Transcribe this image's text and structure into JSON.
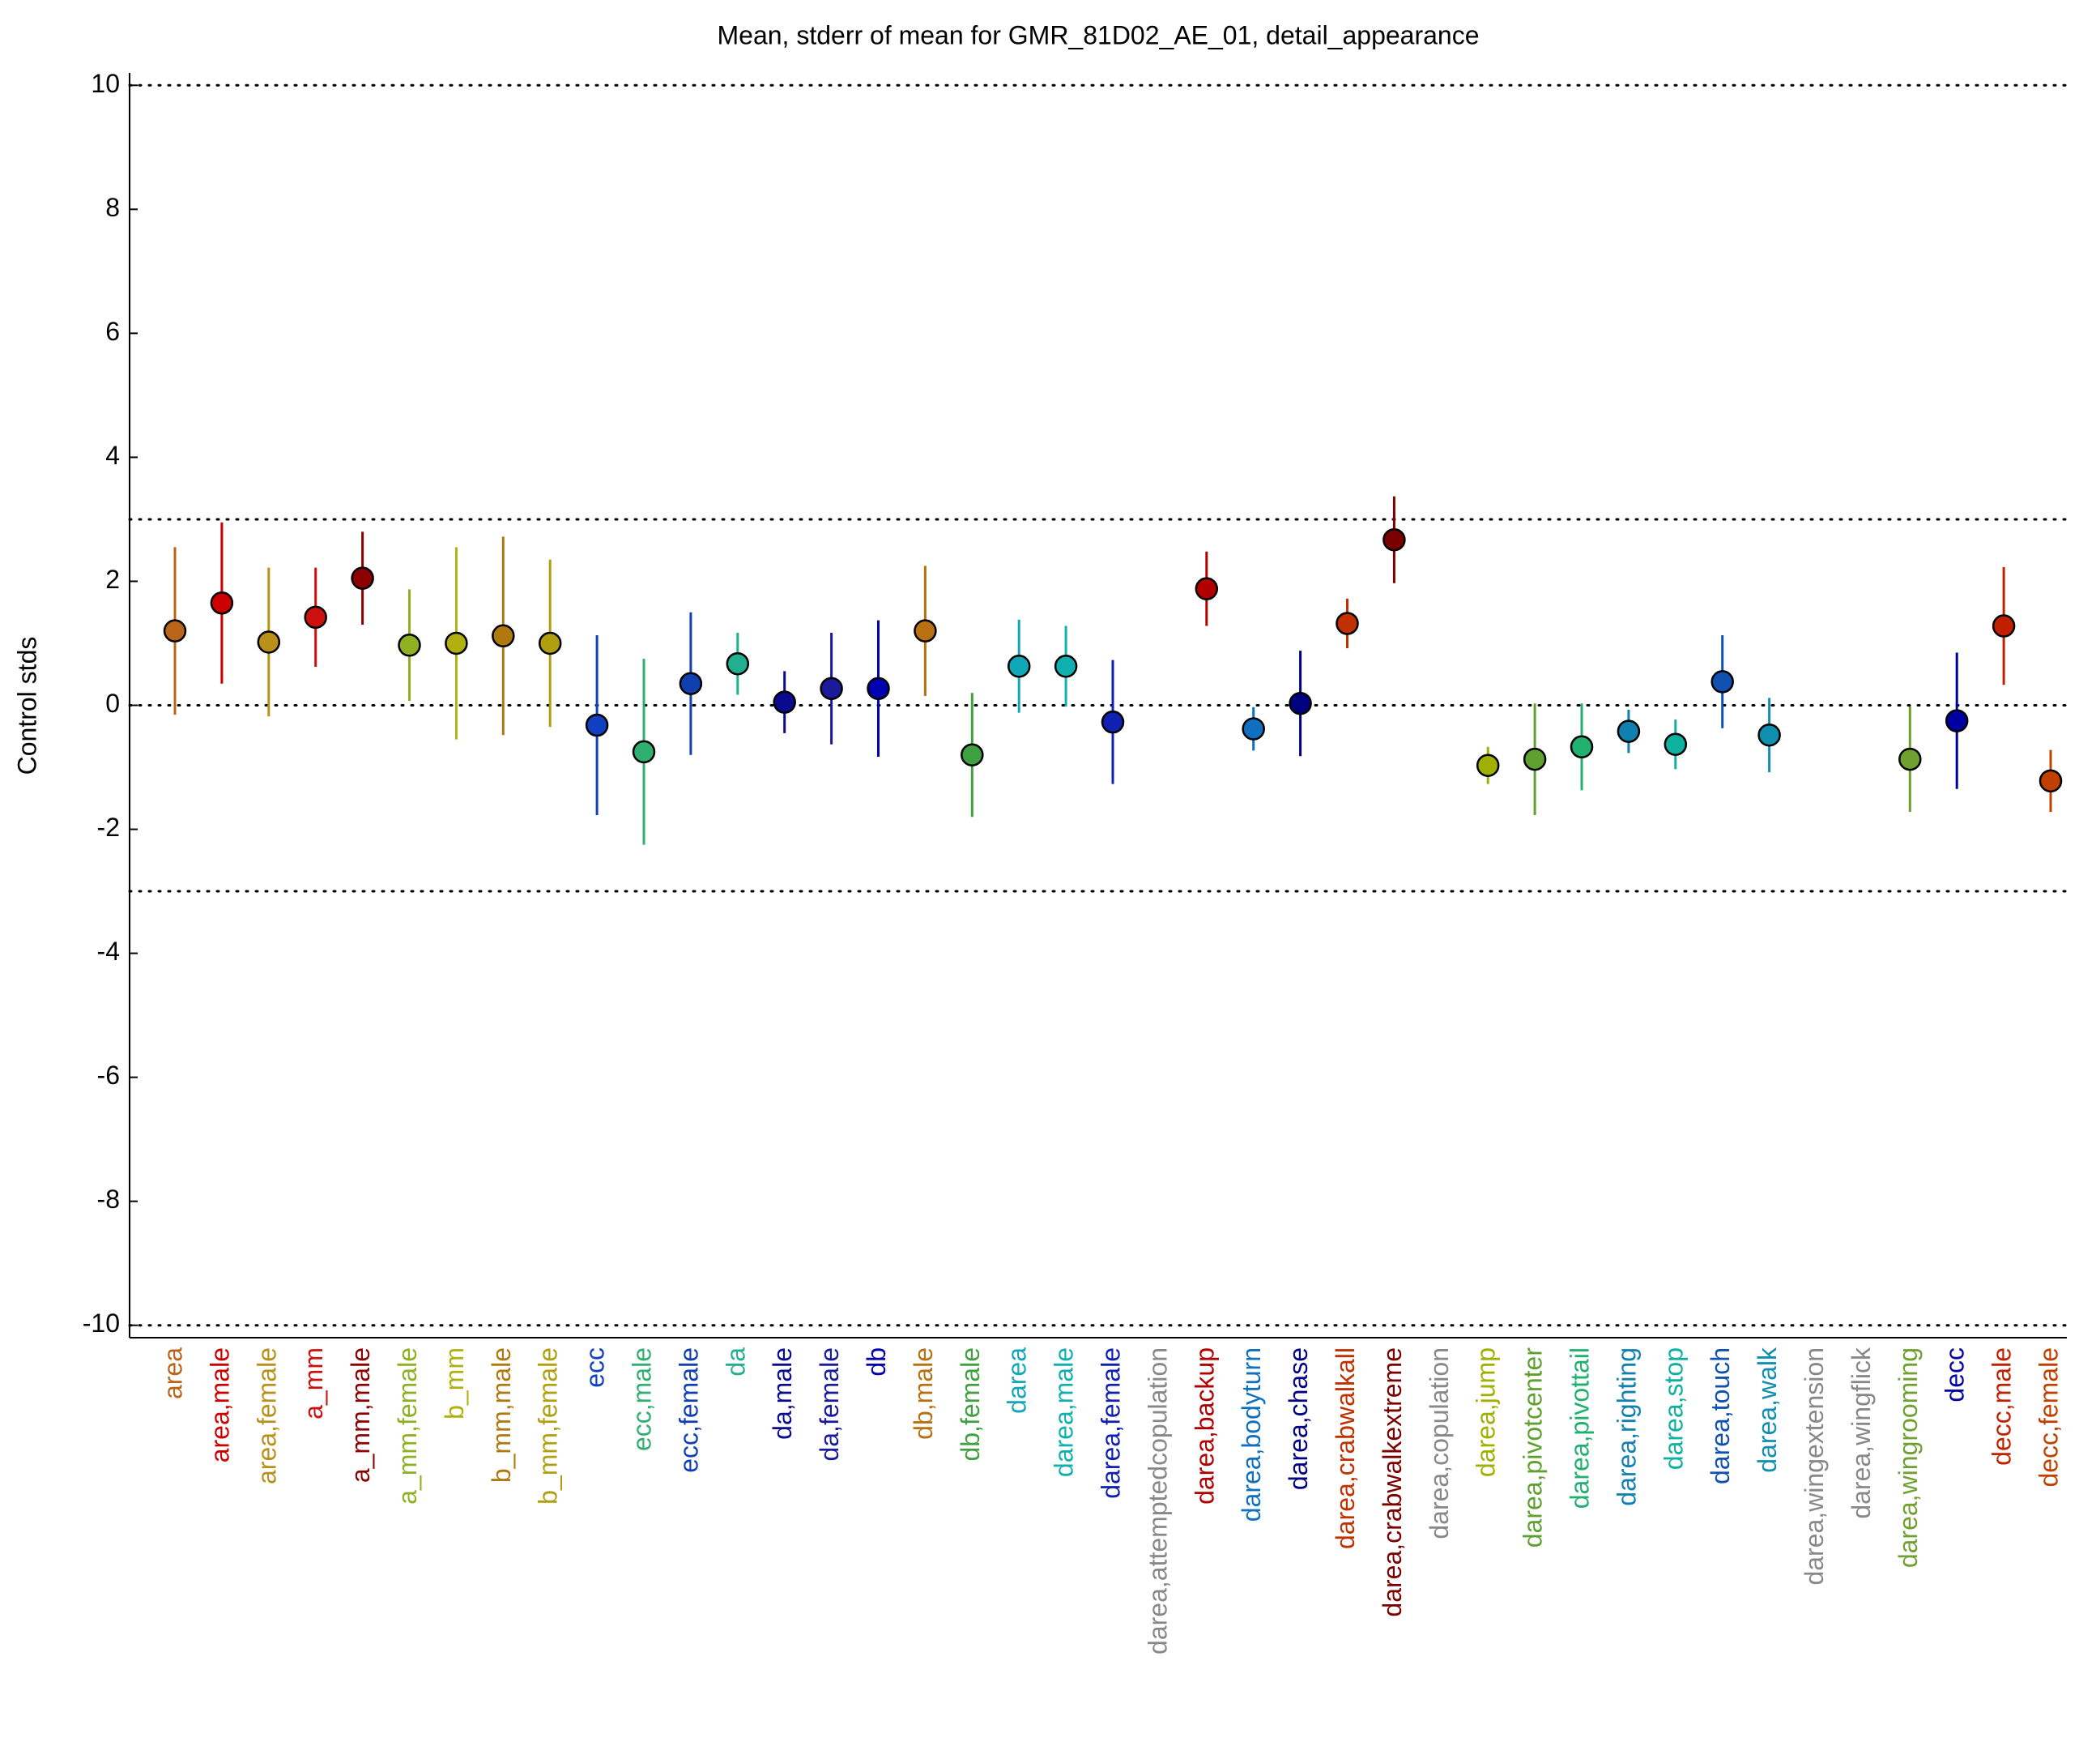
{
  "chart_data": {
    "type": "errorbar",
    "title": "Mean, stderr of mean for GMR_81D02_AE_01, detail_appearance",
    "y_label": "Control stds",
    "categories": [
      "area",
      "area,male",
      "area,female",
      "a_mm",
      "a_mm,male",
      "a_mm,female",
      "b_mm",
      "b_mm,male",
      "b_mm,female",
      "ecc",
      "ecc,male",
      "ecc,female",
      "da",
      "da,male",
      "da,female",
      "db",
      "db,male",
      "db,female",
      "darea",
      "darea,male",
      "darea,female",
      "darea,attemptedcopulation",
      "darea,backup",
      "darea,bodyturn",
      "darea,chase",
      "darea,crabwalkall",
      "darea,crabwalkextreme",
      "darea,copulation",
      "darea,jump",
      "darea,pivotcenter",
      "darea,pivottail",
      "darea,righting",
      "darea,stop",
      "darea,touch",
      "darea,walk",
      "darea,wingextension",
      "darea,wingflick",
      "darea,wingrooming",
      "decc",
      "decc,male",
      "decc,female"
    ],
    "values": [
      1.2,
      1.65,
      1.02,
      1.42,
      2.05,
      0.97,
      1.0,
      1.12,
      1.0,
      -0.32,
      -0.75,
      0.35,
      0.67,
      0.05,
      0.27,
      0.27,
      1.2,
      -0.8,
      0.63,
      0.63,
      -0.27,
      null,
      1.88,
      -0.38,
      0.03,
      1.32,
      2.67,
      null,
      -0.97,
      -0.87,
      -0.67,
      -0.42,
      -0.63,
      0.38,
      -0.48,
      null,
      null,
      -0.87,
      -0.25,
      1.28,
      -1.22
    ],
    "errors": [
      1.35,
      1.3,
      1.2,
      0.8,
      0.75,
      0.9,
      1.55,
      1.6,
      1.35,
      1.45,
      1.5,
      1.15,
      0.5,
      0.5,
      0.9,
      1.1,
      1.05,
      1.0,
      0.75,
      0.65,
      1.0,
      null,
      0.6,
      0.35,
      0.85,
      0.4,
      0.7,
      null,
      0.3,
      0.9,
      0.7,
      0.35,
      0.4,
      0.75,
      0.6,
      null,
      null,
      0.85,
      1.1,
      0.95,
      0.5
    ],
    "colors": [
      "#b8651a",
      "#cc0000",
      "#b8901a",
      "#cc1010",
      "#8b0000",
      "#8fb020",
      "#b0b010",
      "#b07810",
      "#b0a010",
      "#1040c0",
      "#30b070",
      "#1040b0",
      "#20b090",
      "#0a0a90",
      "#1a1a9a",
      "#0000b0",
      "#b87010",
      "#40a040",
      "#10a8b8",
      "#10b0b0",
      "#1020b0",
      "#888888",
      "#b00000",
      "#1070c0",
      "#000080",
      "#c03000",
      "#7a0000",
      "#888888",
      "#a0b000",
      "#60a030",
      "#20b070",
      "#1080b0",
      "#10b0a0",
      "#1050b0",
      "#1090b0",
      "#888888",
      "#888888",
      "#70a030",
      "#0000a0",
      "#c02000",
      "#c04000"
    ],
    "ylim": [
      -10.2,
      10.2
    ],
    "yticks": [
      -10,
      -8,
      -6,
      -4,
      -2,
      0,
      2,
      4,
      6,
      8,
      10
    ],
    "reference_lines": [
      10,
      3,
      0,
      -3,
      -10
    ]
  }
}
